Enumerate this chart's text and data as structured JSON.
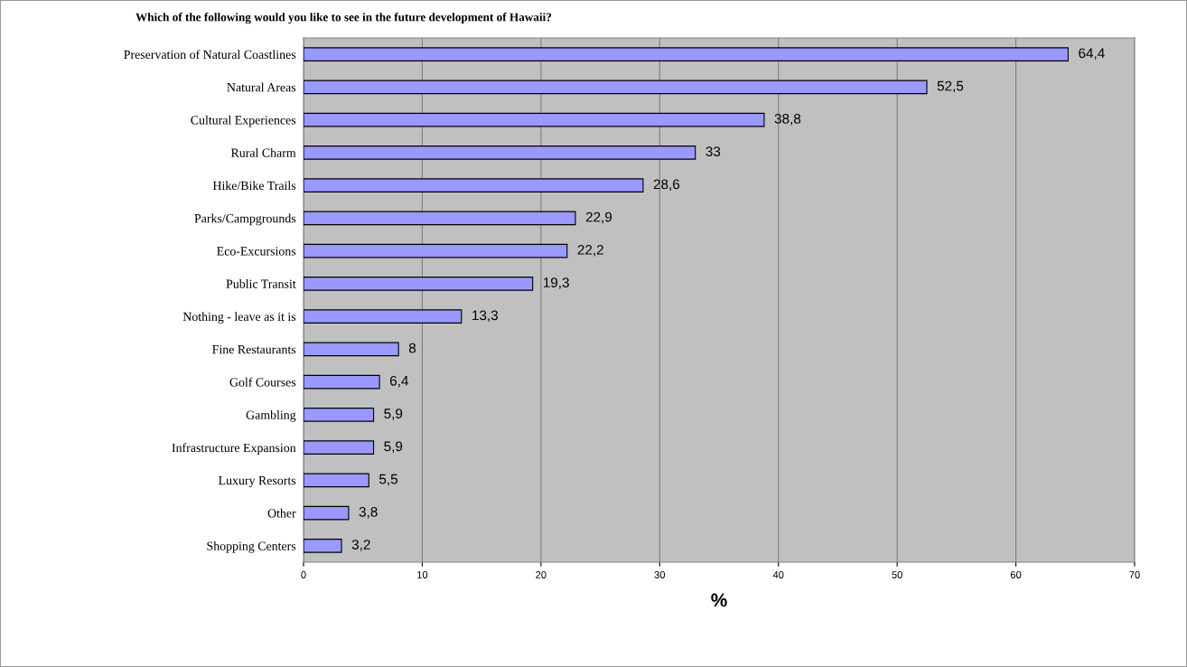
{
  "chart_data": {
    "type": "bar",
    "orientation": "horizontal",
    "title": "Which of the following would you like to see in the future development of Hawaii?",
    "xlabel": "%",
    "categories": [
      "Preservation of Natural Coastlines",
      "Natural Areas",
      "Cultural Experiences",
      "Rural Charm",
      "Hike/Bike Trails",
      "Parks/Campgrounds",
      "Eco-Excursions",
      "Public Transit",
      "Nothing - leave as it is",
      "Fine Restaurants",
      "Golf Courses",
      "Gambling",
      "Infrastructure Expansion",
      "Luxury Resorts",
      "Other",
      "Shopping Centers"
    ],
    "values": [
      64.4,
      52.5,
      38.8,
      33,
      28.6,
      22.9,
      22.2,
      19.3,
      13.3,
      8,
      6.4,
      5.9,
      5.9,
      5.5,
      3.8,
      3.2
    ],
    "value_labels": [
      "64,4",
      "52,5",
      "38,8",
      "33",
      "28,6",
      "22,9",
      "22,2",
      "19,3",
      "13,3",
      "8",
      "6,4",
      "5,9",
      "5,9",
      "5,5",
      "3,8",
      "3,2"
    ],
    "color": "#9999ff",
    "xlim": [
      0,
      70
    ],
    "xticks": [
      0,
      10,
      20,
      30,
      40,
      50,
      60,
      70
    ],
    "grid": "x",
    "legend": false
  }
}
